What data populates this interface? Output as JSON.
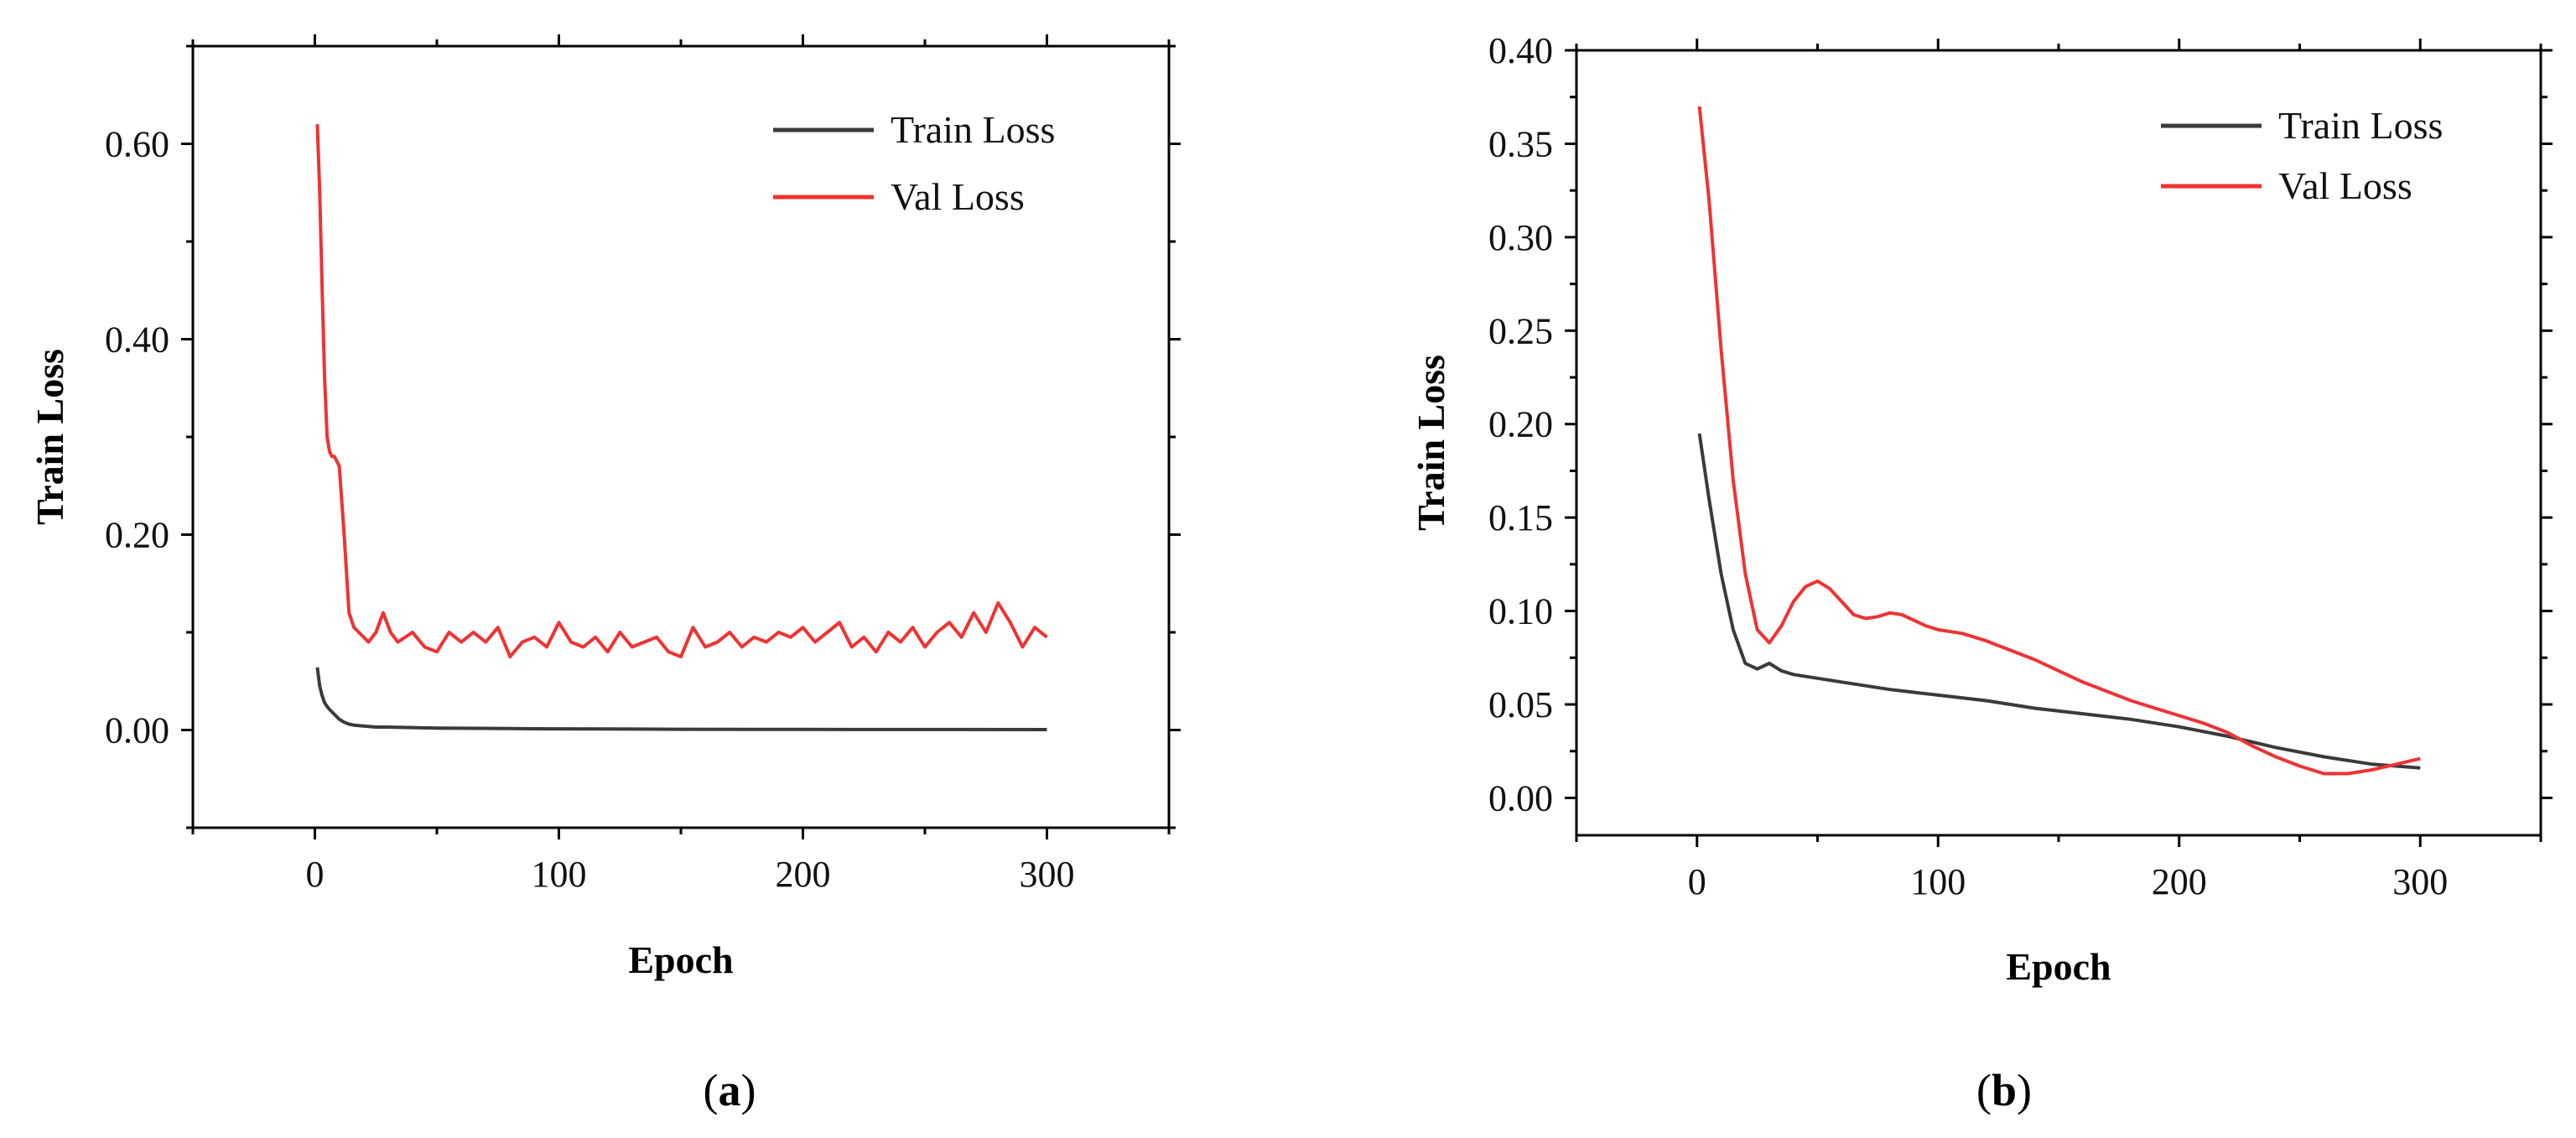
{
  "chart_data": [
    {
      "type": "line",
      "panel_label": "(a)",
      "panel_letter": "a",
      "xlabel": "Epoch",
      "ylabel": "Train Loss",
      "xlim": [
        -50,
        350
      ],
      "ylim": [
        -0.1,
        0.7
      ],
      "x_ticks": [
        0,
        100,
        200,
        300
      ],
      "x_tick_labels": [
        "0",
        "100",
        "200",
        "300"
      ],
      "y_ticks": [
        0.0,
        0.2,
        0.4,
        0.6
      ],
      "y_tick_labels": [
        "0.00",
        "0.20",
        "0.40",
        "0.60"
      ],
      "legend_position": "top-right",
      "series": [
        {
          "name": "Train Loss",
          "color": "#3a3a3a",
          "x": [
            1,
            2,
            3,
            4,
            5,
            6,
            8,
            10,
            12,
            14,
            16,
            20,
            25,
            30,
            40,
            50,
            60,
            80,
            100,
            120,
            150,
            200,
            250,
            300
          ],
          "y": [
            0.064,
            0.045,
            0.035,
            0.028,
            0.024,
            0.021,
            0.016,
            0.011,
            0.008,
            0.006,
            0.005,
            0.004,
            0.003,
            0.003,
            0.0025,
            0.002,
            0.0018,
            0.0015,
            0.0012,
            0.001,
            0.0008,
            0.0006,
            0.0005,
            0.0004
          ]
        },
        {
          "name": "Val Loss",
          "color": "#ee3333",
          "x": [
            1,
            2,
            3,
            4,
            5,
            6,
            7,
            8,
            10,
            12,
            14,
            16,
            18,
            20,
            22,
            25,
            28,
            31,
            34,
            37,
            40,
            45,
            50,
            55,
            60,
            65,
            70,
            75,
            80,
            85,
            90,
            95,
            100,
            105,
            110,
            115,
            120,
            125,
            130,
            135,
            140,
            145,
            150,
            155,
            160,
            165,
            170,
            175,
            180,
            185,
            190,
            195,
            200,
            205,
            210,
            215,
            220,
            225,
            230,
            235,
            240,
            245,
            250,
            255,
            260,
            265,
            270,
            275,
            280,
            285,
            290,
            295,
            300
          ],
          "y": [
            0.62,
            0.55,
            0.45,
            0.36,
            0.3,
            0.285,
            0.28,
            0.28,
            0.27,
            0.2,
            0.12,
            0.105,
            0.1,
            0.095,
            0.09,
            0.1,
            0.12,
            0.1,
            0.09,
            0.095,
            0.1,
            0.085,
            0.08,
            0.1,
            0.09,
            0.1,
            0.09,
            0.105,
            0.075,
            0.09,
            0.095,
            0.085,
            0.11,
            0.09,
            0.085,
            0.095,
            0.08,
            0.1,
            0.085,
            0.09,
            0.095,
            0.08,
            0.075,
            0.105,
            0.085,
            0.09,
            0.1,
            0.085,
            0.095,
            0.09,
            0.1,
            0.095,
            0.105,
            0.09,
            0.1,
            0.11,
            0.085,
            0.095,
            0.08,
            0.1,
            0.09,
            0.105,
            0.085,
            0.1,
            0.11,
            0.095,
            0.12,
            0.1,
            0.13,
            0.11,
            0.085,
            0.105,
            0.095
          ]
        }
      ]
    },
    {
      "type": "line",
      "panel_label": "(b)",
      "panel_letter": "b",
      "xlabel": "Epoch",
      "ylabel": "Train Loss",
      "xlim": [
        -50,
        350
      ],
      "ylim": [
        -0.02,
        0.4
      ],
      "x_ticks": [
        0,
        100,
        200,
        300
      ],
      "x_tick_labels": [
        "0",
        "100",
        "200",
        "300"
      ],
      "y_ticks": [
        0.0,
        0.05,
        0.1,
        0.15,
        0.2,
        0.25,
        0.3,
        0.35,
        0.4
      ],
      "y_tick_labels": [
        "0.00",
        "0.05",
        "0.10",
        "0.15",
        "0.20",
        "0.25",
        "0.30",
        "0.35",
        "0.40"
      ],
      "legend_position": "top-right",
      "series": [
        {
          "name": "Train Loss",
          "color": "#3a3a3a",
          "x": [
            1,
            5,
            10,
            15,
            20,
            25,
            30,
            35,
            40,
            50,
            60,
            80,
            100,
            120,
            140,
            160,
            180,
            200,
            220,
            240,
            260,
            280,
            300
          ],
          "y": [
            0.195,
            0.16,
            0.12,
            0.09,
            0.072,
            0.069,
            0.072,
            0.068,
            0.066,
            0.064,
            0.062,
            0.058,
            0.055,
            0.052,
            0.048,
            0.045,
            0.042,
            0.038,
            0.033,
            0.027,
            0.022,
            0.018,
            0.016
          ]
        },
        {
          "name": "Val Loss",
          "color": "#ee3333",
          "x": [
            1,
            5,
            10,
            15,
            20,
            25,
            30,
            35,
            40,
            45,
            50,
            55,
            60,
            65,
            70,
            75,
            80,
            85,
            90,
            95,
            100,
            110,
            120,
            130,
            140,
            150,
            160,
            170,
            180,
            190,
            200,
            210,
            220,
            230,
            240,
            250,
            260,
            270,
            280,
            290,
            300
          ],
          "y": [
            0.37,
            0.32,
            0.24,
            0.17,
            0.12,
            0.09,
            0.083,
            0.092,
            0.105,
            0.113,
            0.116,
            0.112,
            0.105,
            0.098,
            0.096,
            0.097,
            0.099,
            0.098,
            0.095,
            0.092,
            0.09,
            0.088,
            0.084,
            0.079,
            0.074,
            0.068,
            0.062,
            0.057,
            0.052,
            0.048,
            0.044,
            0.04,
            0.035,
            0.028,
            0.022,
            0.017,
            0.013,
            0.013,
            0.015,
            0.018,
            0.021
          ]
        }
      ]
    }
  ]
}
